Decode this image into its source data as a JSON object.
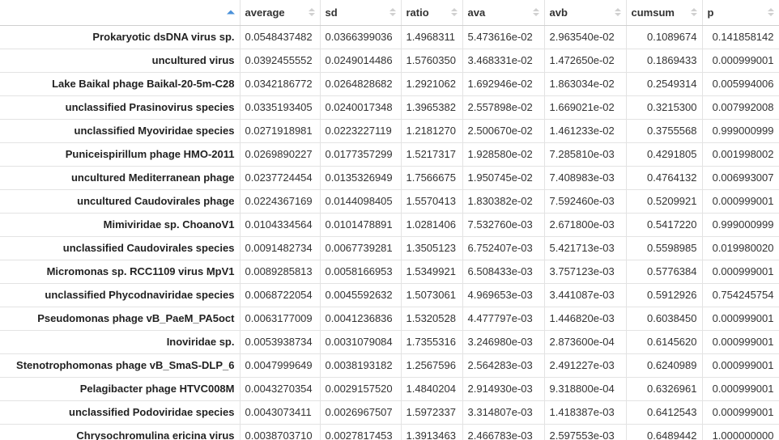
{
  "table": {
    "columns": [
      {
        "key": "average",
        "label": "average"
      },
      {
        "key": "sd",
        "label": "sd"
      },
      {
        "key": "ratio",
        "label": "ratio"
      },
      {
        "key": "ava",
        "label": "ava"
      },
      {
        "key": "avb",
        "label": "avb"
      },
      {
        "key": "cumsum",
        "label": "cumsum"
      },
      {
        "key": "p",
        "label": "p"
      }
    ],
    "rows": [
      {
        "name": "Prokaryotic dsDNA virus sp.",
        "average": "0.0548437482",
        "sd": "0.0366399036",
        "ratio": "1.4968311",
        "ava": "5.473616e-02",
        "avb": "2.963540e-02",
        "cumsum": "0.1089674",
        "p": "0.141858142"
      },
      {
        "name": "uncultured virus",
        "average": "0.0392455552",
        "sd": "0.0249014486",
        "ratio": "1.5760350",
        "ava": "3.468331e-02",
        "avb": "1.472650e-02",
        "cumsum": "0.1869433",
        "p": "0.000999001"
      },
      {
        "name": "Lake Baikal phage Baikal-20-5m-C28",
        "average": "0.0342186772",
        "sd": "0.0264828682",
        "ratio": "1.2921062",
        "ava": "1.692946e-02",
        "avb": "1.863034e-02",
        "cumsum": "0.2549314",
        "p": "0.005994006"
      },
      {
        "name": "unclassified Prasinovirus species",
        "average": "0.0335193405",
        "sd": "0.0240017348",
        "ratio": "1.3965382",
        "ava": "2.557898e-02",
        "avb": "1.669021e-02",
        "cumsum": "0.3215300",
        "p": "0.007992008"
      },
      {
        "name": "unclassified Myoviridae species",
        "average": "0.0271918981",
        "sd": "0.0223227119",
        "ratio": "1.2181270",
        "ava": "2.500670e-02",
        "avb": "1.461233e-02",
        "cumsum": "0.3755568",
        "p": "0.999000999"
      },
      {
        "name": "Puniceispirillum phage HMO-2011",
        "average": "0.0269890227",
        "sd": "0.0177357299",
        "ratio": "1.5217317",
        "ava": "1.928580e-02",
        "avb": "7.285810e-03",
        "cumsum": "0.4291805",
        "p": "0.001998002"
      },
      {
        "name": "uncultured Mediterranean phage",
        "average": "0.0237724454",
        "sd": "0.0135326949",
        "ratio": "1.7566675",
        "ava": "1.950745e-02",
        "avb": "7.408983e-03",
        "cumsum": "0.4764132",
        "p": "0.006993007"
      },
      {
        "name": "uncultured Caudovirales phage",
        "average": "0.0224367169",
        "sd": "0.0144098405",
        "ratio": "1.5570413",
        "ava": "1.830382e-02",
        "avb": "7.592460e-03",
        "cumsum": "0.5209921",
        "p": "0.000999001"
      },
      {
        "name": "Mimiviridae sp. ChoanoV1",
        "average": "0.0104334564",
        "sd": "0.0101478891",
        "ratio": "1.0281406",
        "ava": "7.532760e-03",
        "avb": "2.671800e-03",
        "cumsum": "0.5417220",
        "p": "0.999000999"
      },
      {
        "name": "unclassified Caudovirales species",
        "average": "0.0091482734",
        "sd": "0.0067739281",
        "ratio": "1.3505123",
        "ava": "6.752407e-03",
        "avb": "5.421713e-03",
        "cumsum": "0.5598985",
        "p": "0.019980020"
      },
      {
        "name": "Micromonas sp. RCC1109 virus MpV1",
        "average": "0.0089285813",
        "sd": "0.0058166953",
        "ratio": "1.5349921",
        "ava": "6.508433e-03",
        "avb": "3.757123e-03",
        "cumsum": "0.5776384",
        "p": "0.000999001"
      },
      {
        "name": "unclassified Phycodnaviridae species",
        "average": "0.0068722054",
        "sd": "0.0045592632",
        "ratio": "1.5073061",
        "ava": "4.969653e-03",
        "avb": "3.441087e-03",
        "cumsum": "0.5912926",
        "p": "0.754245754"
      },
      {
        "name": "Pseudomonas phage vB_PaeM_PA5oct",
        "average": "0.0063177009",
        "sd": "0.0041236836",
        "ratio": "1.5320528",
        "ava": "4.477797e-03",
        "avb": "1.446820e-03",
        "cumsum": "0.6038450",
        "p": "0.000999001"
      },
      {
        "name": "Inoviridae sp.",
        "average": "0.0053938734",
        "sd": "0.0031079084",
        "ratio": "1.7355316",
        "ava": "3.246980e-03",
        "avb": "2.873600e-04",
        "cumsum": "0.6145620",
        "p": "0.000999001"
      },
      {
        "name": "Stenotrophomonas phage vB_SmaS-DLP_6",
        "average": "0.0047999649",
        "sd": "0.0038193182",
        "ratio": "1.2567596",
        "ava": "2.564283e-03",
        "avb": "2.491227e-03",
        "cumsum": "0.6240989",
        "p": "0.000999001"
      },
      {
        "name": "Pelagibacter phage HTVC008M",
        "average": "0.0043270354",
        "sd": "0.0029157520",
        "ratio": "1.4840204",
        "ava": "2.914930e-03",
        "avb": "9.318800e-04",
        "cumsum": "0.6326961",
        "p": "0.000999001"
      },
      {
        "name": "unclassified Podoviridae species",
        "average": "0.0043073411",
        "sd": "0.0026967507",
        "ratio": "1.5972337",
        "ava": "3.314807e-03",
        "avb": "1.418387e-03",
        "cumsum": "0.6412543",
        "p": "0.000999001"
      },
      {
        "name": "Chrysochromulina ericina virus",
        "average": "0.0038703710",
        "sd": "0.0027817453",
        "ratio": "1.3913463",
        "ava": "2.466783e-03",
        "avb": "2.597553e-03",
        "cumsum": "0.6489442",
        "p": "1.000000000"
      }
    ]
  }
}
